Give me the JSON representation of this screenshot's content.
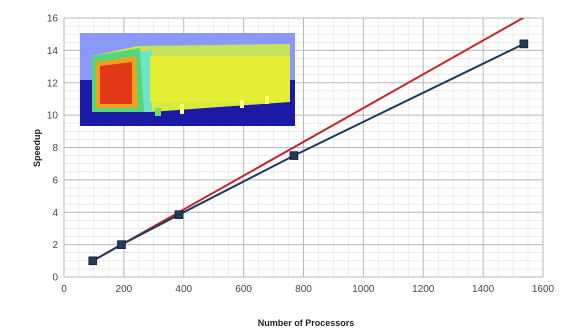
{
  "chart_data": {
    "type": "line",
    "xlabel": "Number of Processors",
    "ylabel": "Speedup",
    "xlim": [
      0,
      1600
    ],
    "ylim": [
      0,
      16
    ],
    "x_ticks": [
      "0",
      "200",
      "400",
      "600",
      "800",
      "1000",
      "1200",
      "1400",
      "1600"
    ],
    "y_ticks": [
      "0",
      "2",
      "4",
      "6",
      "8",
      "10",
      "12",
      "14",
      "16"
    ],
    "grid": true,
    "series": [
      {
        "color": "#c0272d",
        "marker": "none",
        "x": [
          96,
          1600
        ],
        "y": [
          1,
          16.7
        ]
      },
      {
        "color": "#1f3a5c",
        "marker": "square",
        "x": [
          96,
          192,
          384,
          768,
          1536
        ],
        "y": [
          1.0,
          2.0,
          3.85,
          7.5,
          14.4
        ]
      }
    ],
    "inset": {
      "description_icon": "thermal-simulation-inset",
      "colors": [
        "#8899ff",
        "#1a1aa8",
        "#e8ee30",
        "#6fe070",
        "#e02a10"
      ]
    }
  }
}
